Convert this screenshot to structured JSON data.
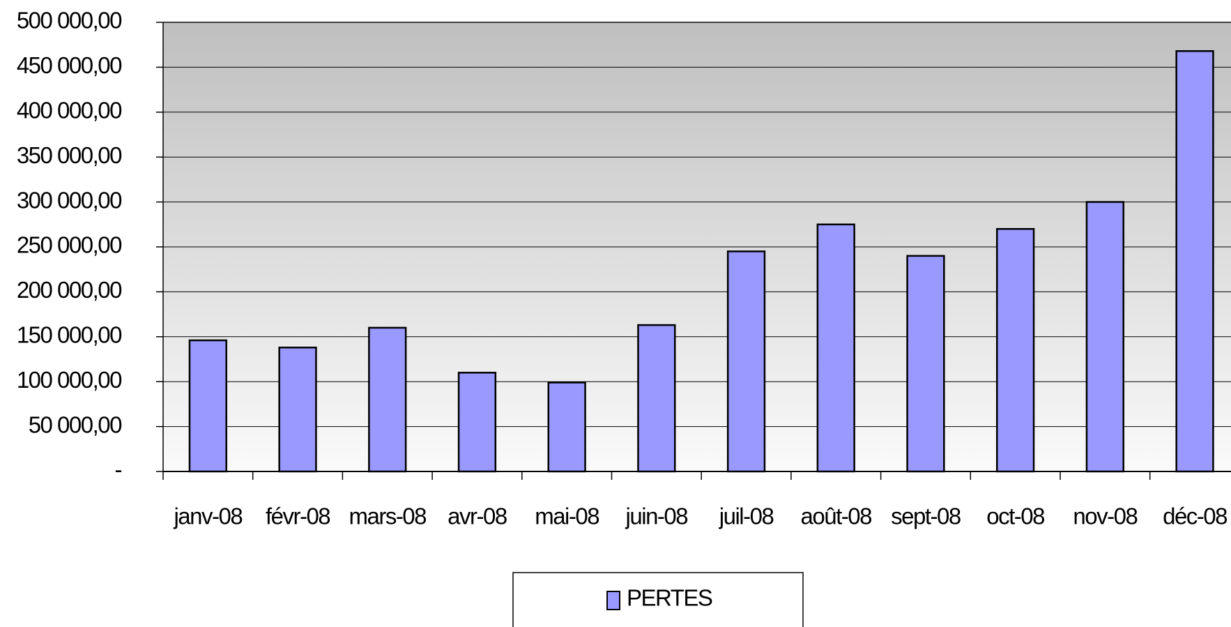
{
  "chart_data": {
    "type": "bar",
    "categories": [
      "janv-08",
      "févr-08",
      "mars-08",
      "avr-08",
      "mai-08",
      "juin-08",
      "juil-08",
      "août-08",
      "sept-08",
      "oct-08",
      "nov-08",
      "déc-08"
    ],
    "series": [
      {
        "name": "PERTES",
        "color": "#9999ff",
        "values": [
          146000,
          138000,
          160000,
          110000,
          99000,
          163000,
          245000,
          275000,
          240000,
          270000,
          300000,
          468000
        ]
      }
    ],
    "ylim": [
      0,
      500000
    ],
    "yticks": [
      {
        "value": 0,
        "label": "-"
      },
      {
        "value": 50000,
        "label": "50 000,00"
      },
      {
        "value": 100000,
        "label": "100 000,00"
      },
      {
        "value": 150000,
        "label": "150 000,00"
      },
      {
        "value": 200000,
        "label": "200 000,00"
      },
      {
        "value": 250000,
        "label": "250 000,00"
      },
      {
        "value": 300000,
        "label": "300 000,00"
      },
      {
        "value": 350000,
        "label": "350 000,00"
      },
      {
        "value": 400000,
        "label": "400 000,00"
      },
      {
        "value": 450000,
        "label": "450 000,00"
      },
      {
        "value": 500000,
        "label": "500 000,00"
      }
    ],
    "grid": true,
    "legend": "bottom"
  }
}
